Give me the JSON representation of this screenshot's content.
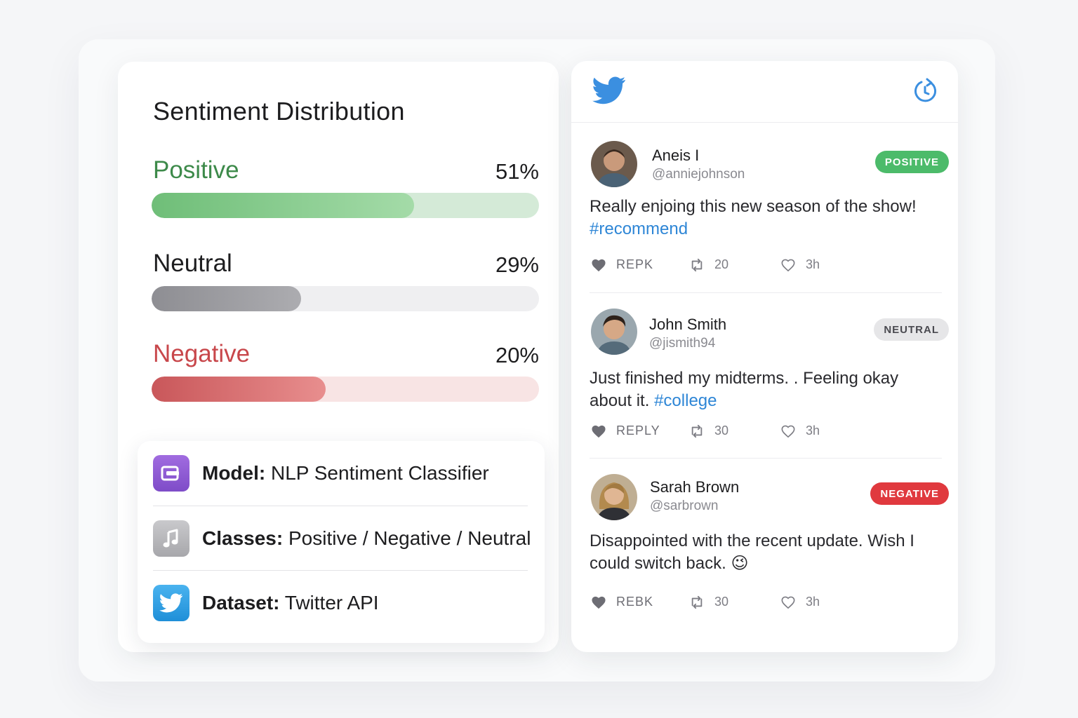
{
  "distribution": {
    "title": "Sentiment Distribution",
    "rows": [
      {
        "label": "Positive",
        "percent_label": "51%",
        "value": 51,
        "color": "#3d8a4a"
      },
      {
        "label": "Neutral",
        "percent_label": "29%",
        "value": 29,
        "color": "#8e8e93"
      },
      {
        "label": "Negative",
        "percent_label": "20%",
        "value": 20,
        "color": "#c8474b"
      }
    ]
  },
  "info": {
    "model": {
      "key": "Model:",
      "value": "NLP Sentiment Classifier",
      "icon": "model-icon"
    },
    "classes": {
      "key": "Classes:",
      "value": "Positive / Negative / Neutral",
      "icon": "music-note-icon"
    },
    "dataset": {
      "key": "Dataset:",
      "value": "Twitter API",
      "icon": "twitter-bird-icon"
    }
  },
  "feed": {
    "logo_icon": "twitter-bird-icon",
    "refresh_icon": "refresh-clock-icon",
    "accent": "#1d9bf0",
    "tweets": [
      {
        "name": "Aneis I",
        "handle": "@anniejohnson",
        "badge": "POSITIVE",
        "text": "Really enjoing this new season of the show!",
        "hashtag": "#recommend",
        "reply": "REPK",
        "retweets": "20",
        "time": "3h"
      },
      {
        "name": "John Smith",
        "handle": "@jismith94",
        "badge": "NEUTRAL",
        "text": "Just finished my midterms. . Feeling okay about it.",
        "hashtag": "#college",
        "reply": "REPLY",
        "retweets": "30",
        "time": "3h"
      },
      {
        "name": "Sarah Brown",
        "handle": "@sarbrown",
        "badge": "NEGATIVE",
        "text": "Disappointed with the recent update. Wish I could switch back.",
        "emoji": "😉",
        "reply": "REBK",
        "retweets": "30",
        "time": "3h"
      }
    ]
  }
}
